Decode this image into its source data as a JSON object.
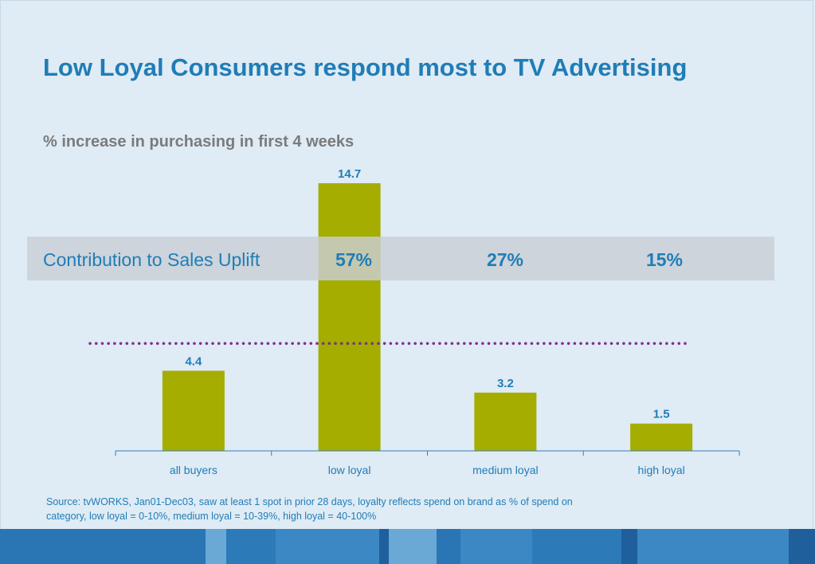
{
  "title": "Low Loyal Consumers respond most to TV Advertising",
  "subtitle": "% increase in purchasing in first 4 weeks",
  "uplift": {
    "label": "Contribution to Sales Uplift",
    "values": [
      "57%",
      "27%",
      "15%"
    ]
  },
  "source": "Source: tvWORKS, Jan01-Dec03, saw at least 1 spot in prior 28 days, loyalty reflects spend on brand as % of spend on category, low loyal = 0-10%, medium loyal = 10-39%, high loyal = 40-100%",
  "colors": {
    "bar": "#a4ad00",
    "title": "#1f7db6",
    "label": "#1f7db6",
    "dotted_line": "#7b2f86",
    "background": "#dfebf5"
  },
  "chart_data": {
    "type": "bar",
    "categories": [
      "all buyers",
      "low loyal",
      "medium loyal",
      "high loyal"
    ],
    "values": [
      4.4,
      14.7,
      3.2,
      1.5
    ],
    "data_labels": [
      "4.4",
      "14.7",
      "3.2",
      "1.5"
    ],
    "title": "Low Loyal Consumers respond most to TV Advertising",
    "subtitle": "% increase in purchasing in first 4 weeks",
    "xlabel": "",
    "ylabel": "",
    "ylim": [
      0,
      14.7
    ],
    "reference_line": {
      "style": "dotted",
      "value": 5.9
    },
    "grid": false,
    "legend": "none"
  }
}
